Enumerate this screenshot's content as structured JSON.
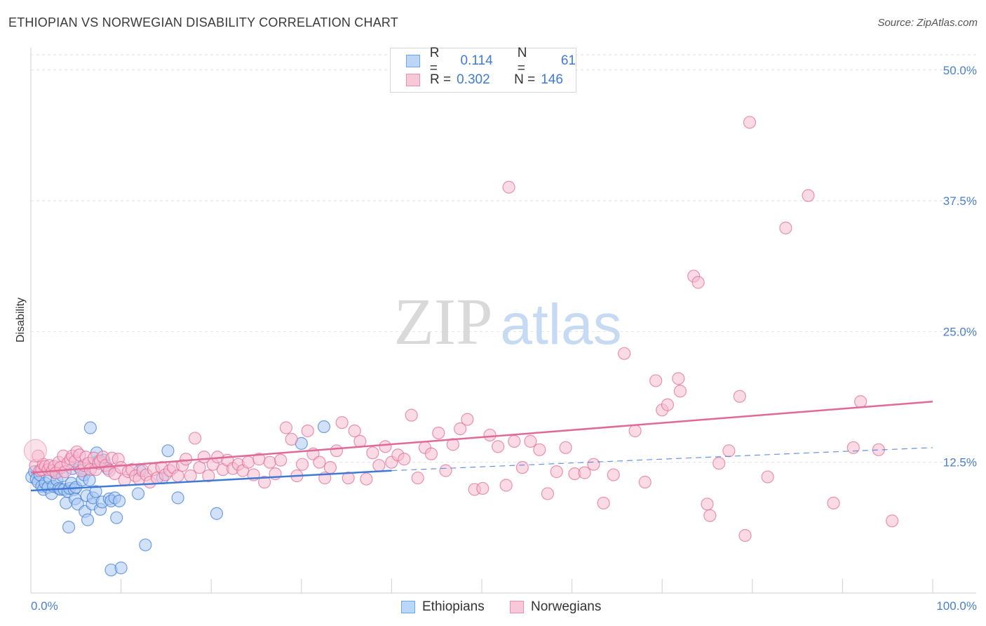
{
  "title": "ETHIOPIAN VS NORWEGIAN DISABILITY CORRELATION CHART",
  "source": "Source: ZipAtlas.com",
  "watermark": {
    "zip": "ZIP",
    "atlas": "atlas"
  },
  "legend": {
    "rows": [
      {
        "r_label": "R =",
        "r_value": "0.114",
        "n_label": "N =",
        "n_value": "61",
        "color": "#6fa8ea",
        "fill": "#bcd6f7"
      },
      {
        "r_label": "R =",
        "r_value": "0.302",
        "n_label": "N =",
        "n_value": "146",
        "color": "#ea8fb0",
        "fill": "#f8c8d8"
      }
    ]
  },
  "chart_data": {
    "type": "scatter",
    "ylabel": "Disability",
    "xlim": [
      0,
      100
    ],
    "ylim": [
      0,
      52
    ],
    "x_tick_labels": [
      "0.0%",
      "100.0%"
    ],
    "y_ticks": [
      12.5,
      25.0,
      37.5,
      50.0
    ],
    "y_tick_labels": [
      "12.5%",
      "25.0%",
      "37.5%",
      "50.0%"
    ],
    "grid": "horizontal-dashed",
    "legend_position": "top-center and bottom",
    "series": [
      {
        "name": "Ethiopians",
        "color": "#3f7ad6",
        "fill": "#a9c8f2",
        "trend": {
          "x": [
            0,
            40
          ],
          "y": [
            9.8,
            11.7
          ],
          "dashed_to": [
            100,
            13.9
          ]
        },
        "points": [
          [
            0.1,
            11.1
          ],
          [
            0.4,
            11.6
          ],
          [
            0.6,
            10.9
          ],
          [
            0.8,
            10.6
          ],
          [
            1.0,
            11.3
          ],
          [
            1.2,
            10.2
          ],
          [
            1.4,
            9.9
          ],
          [
            1.6,
            10.5
          ],
          [
            1.9,
            10.1
          ],
          [
            2.1,
            11.0
          ],
          [
            2.3,
            9.5
          ],
          [
            2.5,
            10.2
          ],
          [
            2.7,
            11.5
          ],
          [
            2.9,
            10.8
          ],
          [
            3.1,
            10.0
          ],
          [
            3.3,
            9.9
          ],
          [
            3.5,
            11.2
          ],
          [
            3.7,
            9.9
          ],
          [
            3.9,
            8.6
          ],
          [
            4.1,
            9.7
          ],
          [
            4.2,
            6.3
          ],
          [
            4.3,
            10.0
          ],
          [
            4.5,
            10.5
          ],
          [
            4.6,
            11.9
          ],
          [
            4.8,
            9.9
          ],
          [
            4.9,
            9.0
          ],
          [
            5.0,
            10.1
          ],
          [
            5.2,
            8.5
          ],
          [
            5.4,
            12.0
          ],
          [
            5.7,
            10.8
          ],
          [
            5.9,
            11.3
          ],
          [
            6.0,
            7.8
          ],
          [
            6.2,
            9.3
          ],
          [
            6.3,
            7.0
          ],
          [
            6.5,
            10.8
          ],
          [
            6.6,
            15.8
          ],
          [
            6.8,
            8.5
          ],
          [
            6.9,
            9.1
          ],
          [
            7.2,
            9.7
          ],
          [
            7.3,
            13.4
          ],
          [
            7.5,
            12.6
          ],
          [
            7.7,
            8.0
          ],
          [
            7.9,
            8.7
          ],
          [
            8.1,
            12.7
          ],
          [
            8.5,
            11.9
          ],
          [
            8.7,
            9.0
          ],
          [
            8.9,
            8.8
          ],
          [
            8.9,
            2.2
          ],
          [
            9.3,
            9.1
          ],
          [
            9.5,
            7.2
          ],
          [
            9.8,
            8.8
          ],
          [
            10.0,
            2.4
          ],
          [
            11.9,
            9.5
          ],
          [
            12.1,
            11.7
          ],
          [
            12.7,
            4.6
          ],
          [
            14.6,
            11.0
          ],
          [
            15.2,
            13.6
          ],
          [
            16.3,
            9.1
          ],
          [
            20.6,
            7.6
          ],
          [
            30.0,
            14.3
          ],
          [
            32.5,
            15.9
          ]
        ]
      },
      {
        "name": "Norwegians",
        "color": "#e06a95",
        "fill": "#f6bcd0",
        "trend": {
          "x": [
            0,
            100
          ],
          "y": [
            11.5,
            18.3
          ]
        },
        "points": [
          [
            0.5,
            12.2
          ],
          [
            0.8,
            13.1
          ],
          [
            1.0,
            11.7
          ],
          [
            1.2,
            11.8
          ],
          [
            1.4,
            12.3
          ],
          [
            1.6,
            12.1
          ],
          [
            1.9,
            11.8
          ],
          [
            2.1,
            12.2
          ],
          [
            2.4,
            11.7
          ],
          [
            2.6,
            12.1
          ],
          [
            2.8,
            11.5
          ],
          [
            3.1,
            12.5
          ],
          [
            3.3,
            12.0
          ],
          [
            3.6,
            13.1
          ],
          [
            3.8,
            11.6
          ],
          [
            4.1,
            12.4
          ],
          [
            4.4,
            12.8
          ],
          [
            4.6,
            13.1
          ],
          [
            4.9,
            12.6
          ],
          [
            5.1,
            13.5
          ],
          [
            5.4,
            13.2
          ],
          [
            5.6,
            11.7
          ],
          [
            5.9,
            12.2
          ],
          [
            6.1,
            13.0
          ],
          [
            6.4,
            12.4
          ],
          [
            6.6,
            11.8
          ],
          [
            7.0,
            12.9
          ],
          [
            7.2,
            11.8
          ],
          [
            7.5,
            12.4
          ],
          [
            7.7,
            12.6
          ],
          [
            8.0,
            13.0
          ],
          [
            8.3,
            12.2
          ],
          [
            8.7,
            11.7
          ],
          [
            9.0,
            12.9
          ],
          [
            9.3,
            11.4
          ],
          [
            9.7,
            12.8
          ],
          [
            10.0,
            12.0
          ],
          [
            10.4,
            10.8
          ],
          [
            10.8,
            11.6
          ],
          [
            11.2,
            11.8
          ],
          [
            11.6,
            11.2
          ],
          [
            12.0,
            10.9
          ],
          [
            12.4,
            11.7
          ],
          [
            12.8,
            11.3
          ],
          [
            13.2,
            10.6
          ],
          [
            13.6,
            11.8
          ],
          [
            14.0,
            11.0
          ],
          [
            14.5,
            12.0
          ],
          [
            14.9,
            11.3
          ],
          [
            15.4,
            11.7
          ],
          [
            15.8,
            12.0
          ],
          [
            16.3,
            11.2
          ],
          [
            16.8,
            12.2
          ],
          [
            17.2,
            12.8
          ],
          [
            17.7,
            11.2
          ],
          [
            18.2,
            14.8
          ],
          [
            18.7,
            12.0
          ],
          [
            19.2,
            13.0
          ],
          [
            19.7,
            11.2
          ],
          [
            20.2,
            12.3
          ],
          [
            20.7,
            13.0
          ],
          [
            21.3,
            11.8
          ],
          [
            21.8,
            12.7
          ],
          [
            22.4,
            11.9
          ],
          [
            23.0,
            12.3
          ],
          [
            23.5,
            11.7
          ],
          [
            24.1,
            12.5
          ],
          [
            24.7,
            11.3
          ],
          [
            25.3,
            12.8
          ],
          [
            25.9,
            10.6
          ],
          [
            26.5,
            12.5
          ],
          [
            27.1,
            11.4
          ],
          [
            27.7,
            12.7
          ],
          [
            28.3,
            15.8
          ],
          [
            28.9,
            14.7
          ],
          [
            29.5,
            11.2
          ],
          [
            30.1,
            12.3
          ],
          [
            30.7,
            15.5
          ],
          [
            31.3,
            13.3
          ],
          [
            32.0,
            12.5
          ],
          [
            32.6,
            11.0
          ],
          [
            33.2,
            12.0
          ],
          [
            33.9,
            13.6
          ],
          [
            34.5,
            16.3
          ],
          [
            35.2,
            11.0
          ],
          [
            35.9,
            15.5
          ],
          [
            36.5,
            14.5
          ],
          [
            37.2,
            10.9
          ],
          [
            37.9,
            13.4
          ],
          [
            38.6,
            12.2
          ],
          [
            39.3,
            14.0
          ],
          [
            40.0,
            12.5
          ],
          [
            40.7,
            13.2
          ],
          [
            41.4,
            12.8
          ],
          [
            42.2,
            17.0
          ],
          [
            42.9,
            11.0
          ],
          [
            43.7,
            13.9
          ],
          [
            44.4,
            13.3
          ],
          [
            45.2,
            15.3
          ],
          [
            46.0,
            11.7
          ],
          [
            46.8,
            14.2
          ],
          [
            47.6,
            15.7
          ],
          [
            48.4,
            16.6
          ],
          [
            49.2,
            9.9
          ],
          [
            50.1,
            10.0
          ],
          [
            50.9,
            15.1
          ],
          [
            51.8,
            14.0
          ],
          [
            52.7,
            10.3
          ],
          [
            53.6,
            14.5
          ],
          [
            54.5,
            12.0
          ],
          [
            55.4,
            14.5
          ],
          [
            56.4,
            13.7
          ],
          [
            57.3,
            9.5
          ],
          [
            58.3,
            11.6
          ],
          [
            59.3,
            13.9
          ],
          [
            60.3,
            11.4
          ],
          [
            61.4,
            11.5
          ],
          [
            62.4,
            12.3
          ],
          [
            63.5,
            8.6
          ],
          [
            64.6,
            11.3
          ],
          [
            65.8,
            22.9
          ],
          [
            67.0,
            15.5
          ],
          [
            68.1,
            10.6
          ],
          [
            69.3,
            20.3
          ],
          [
            70.0,
            17.5
          ],
          [
            70.6,
            18.0
          ],
          [
            71.8,
            20.5
          ],
          [
            72.0,
            19.3
          ],
          [
            73.5,
            30.3
          ],
          [
            75.0,
            8.5
          ],
          [
            75.3,
            7.4
          ],
          [
            76.3,
            12.4
          ],
          [
            77.4,
            13.6
          ],
          [
            78.6,
            18.8
          ],
          [
            79.2,
            5.5
          ],
          [
            79.7,
            45.0
          ],
          [
            81.7,
            11.1
          ],
          [
            83.7,
            34.9
          ],
          [
            86.2,
            38.0
          ],
          [
            89.0,
            8.6
          ],
          [
            91.2,
            13.9
          ],
          [
            92.0,
            18.3
          ],
          [
            94.0,
            13.7
          ],
          [
            95.5,
            6.9
          ],
          [
            53.0,
            38.8
          ],
          [
            74.0,
            29.7
          ]
        ]
      }
    ]
  }
}
